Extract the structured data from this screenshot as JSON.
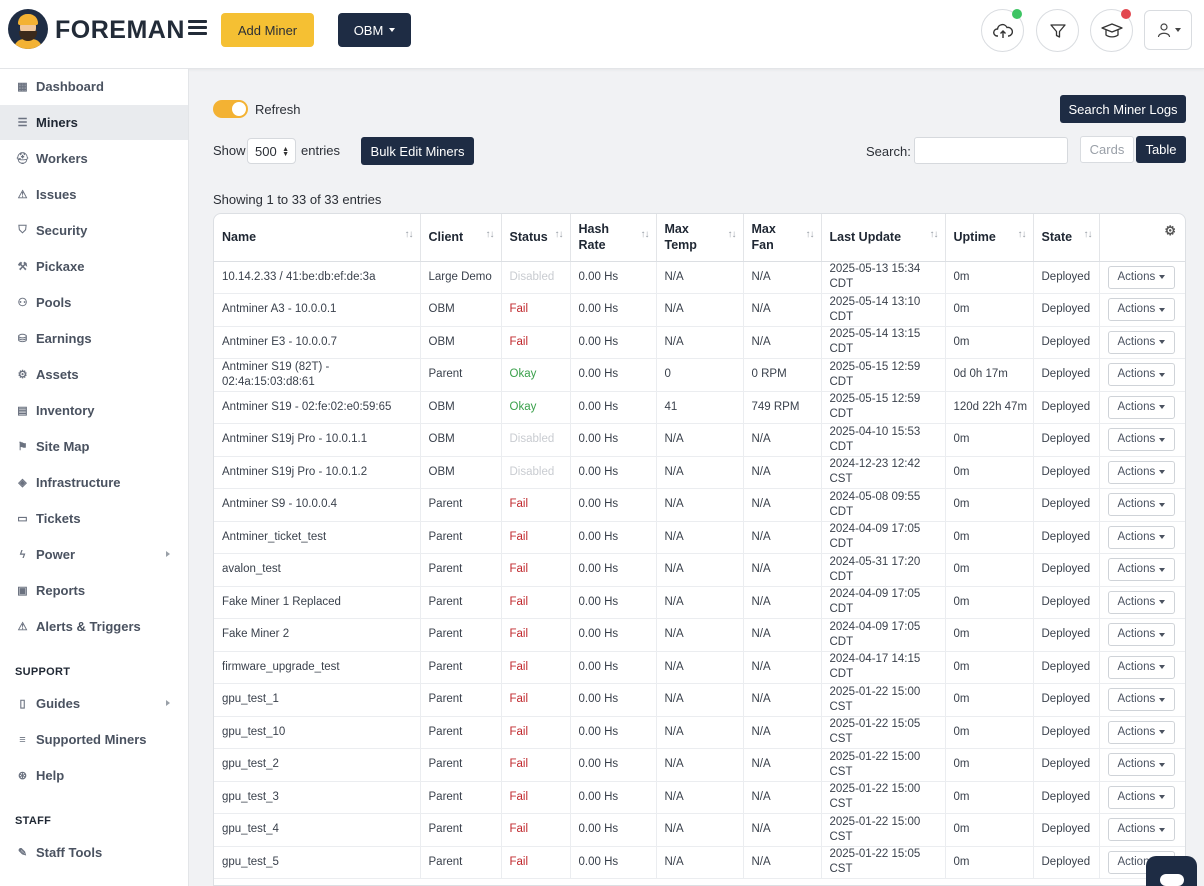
{
  "header": {
    "brand": "FOREMAN",
    "add_miner": "Add Miner",
    "org_select": "OBM",
    "status_colors": {
      "upload_dot": "#3dc463",
      "learn_dot": "#e2474f"
    }
  },
  "sidebar": {
    "items": [
      {
        "label": "Dashboard",
        "icon": "dashboard-icon"
      },
      {
        "label": "Miners",
        "icon": "server-icon"
      },
      {
        "label": "Workers",
        "icon": "hard-hat-icon"
      },
      {
        "label": "Issues",
        "icon": "warning-icon"
      },
      {
        "label": "Security",
        "icon": "shield-icon"
      },
      {
        "label": "Pickaxe",
        "icon": "pickaxe-icon"
      },
      {
        "label": "Pools",
        "icon": "pools-icon"
      },
      {
        "label": "Earnings",
        "icon": "coins-icon"
      },
      {
        "label": "Assets",
        "icon": "chip-icon"
      },
      {
        "label": "Inventory",
        "icon": "boxes-icon"
      },
      {
        "label": "Site Map",
        "icon": "sitemap-icon"
      },
      {
        "label": "Infrastructure",
        "icon": "layers-icon"
      },
      {
        "label": "Tickets",
        "icon": "ticket-icon"
      },
      {
        "label": "Power",
        "icon": "bolt-icon"
      },
      {
        "label": "Reports",
        "icon": "report-icon"
      },
      {
        "label": "Alerts & Triggers",
        "icon": "alert-icon"
      }
    ],
    "support_heading": "SUPPORT",
    "support_items": [
      {
        "label": "Guides",
        "icon": "book-icon"
      },
      {
        "label": "Supported Miners",
        "icon": "list-icon"
      },
      {
        "label": "Help",
        "icon": "lifebuoy-icon"
      }
    ],
    "staff_heading": "STAFF",
    "staff_items": [
      {
        "label": "Staff Tools",
        "icon": "wrench-icon"
      }
    ]
  },
  "main": {
    "refresh_label": "Refresh",
    "search_logs": "Search Miner Logs",
    "show_label": "Show",
    "show_value": "500",
    "entries_label": "entries",
    "bulk_edit": "Bulk Edit Miners",
    "search_label": "Search:",
    "search_value": "",
    "view_cards": "Cards",
    "view_table": "Table",
    "showing": "Showing 1 to 33 of 33 entries"
  },
  "table": {
    "columns": [
      "Name",
      "Client",
      "Status",
      "Hash Rate",
      "Max Temp",
      "Max Fan",
      "Last Update",
      "Uptime",
      "State"
    ],
    "action_label": "Actions",
    "rows": [
      {
        "name": "10.14.2.33 / 41:be:db:ef:de:3a",
        "client": "Large Demo",
        "status": "Disabled",
        "hash": "0.00 Hs",
        "temp": "N/A",
        "fan": "N/A",
        "update": "2025-05-13 15:34 CDT",
        "uptime": "0m",
        "state": "Deployed"
      },
      {
        "name": "Antminer A3 - 10.0.0.1",
        "client": "OBM",
        "status": "Fail",
        "hash": "0.00 Hs",
        "temp": "N/A",
        "fan": "N/A",
        "update": "2025-05-14 13:10 CDT",
        "uptime": "0m",
        "state": "Deployed"
      },
      {
        "name": "Antminer E3 - 10.0.0.7",
        "client": "OBM",
        "status": "Fail",
        "hash": "0.00 Hs",
        "temp": "N/A",
        "fan": "N/A",
        "update": "2025-05-14 13:15 CDT",
        "uptime": "0m",
        "state": "Deployed"
      },
      {
        "name": "Antminer S19 (82T) - 02:4a:15:03:d8:61",
        "client": "Parent",
        "status": "Okay",
        "hash": "0.00 Hs",
        "temp": "0",
        "fan": "0 RPM",
        "update": "2025-05-15 12:59 CDT",
        "uptime": "0d 0h 17m",
        "state": "Deployed"
      },
      {
        "name": "Antminer S19 - 02:fe:02:e0:59:65",
        "client": "OBM",
        "status": "Okay",
        "hash": "0.00 Hs",
        "temp": "41",
        "fan": "749 RPM",
        "update": "2025-05-15 12:59 CDT",
        "uptime": "120d 22h 47m",
        "state": "Deployed"
      },
      {
        "name": "Antminer S19j Pro - 10.0.1.1",
        "client": "OBM",
        "status": "Disabled",
        "hash": "0.00 Hs",
        "temp": "N/A",
        "fan": "N/A",
        "update": "2025-04-10 15:53 CDT",
        "uptime": "0m",
        "state": "Deployed"
      },
      {
        "name": "Antminer S19j Pro - 10.0.1.2",
        "client": "OBM",
        "status": "Disabled",
        "hash": "0.00 Hs",
        "temp": "N/A",
        "fan": "N/A",
        "update": "2024-12-23 12:42 CST",
        "uptime": "0m",
        "state": "Deployed"
      },
      {
        "name": "Antminer S9 - 10.0.0.4",
        "client": "Parent",
        "status": "Fail",
        "hash": "0.00 Hs",
        "temp": "N/A",
        "fan": "N/A",
        "update": "2024-05-08 09:55 CDT",
        "uptime": "0m",
        "state": "Deployed"
      },
      {
        "name": "Antminer_ticket_test",
        "client": "Parent",
        "status": "Fail",
        "hash": "0.00 Hs",
        "temp": "N/A",
        "fan": "N/A",
        "update": "2024-04-09 17:05 CDT",
        "uptime": "0m",
        "state": "Deployed"
      },
      {
        "name": "avalon_test",
        "client": "Parent",
        "status": "Fail",
        "hash": "0.00 Hs",
        "temp": "N/A",
        "fan": "N/A",
        "update": "2024-05-31 17:20 CDT",
        "uptime": "0m",
        "state": "Deployed"
      },
      {
        "name": "Fake Miner 1 Replaced",
        "client": "Parent",
        "status": "Fail",
        "hash": "0.00 Hs",
        "temp": "N/A",
        "fan": "N/A",
        "update": "2024-04-09 17:05 CDT",
        "uptime": "0m",
        "state": "Deployed"
      },
      {
        "name": "Fake Miner 2",
        "client": "Parent",
        "status": "Fail",
        "hash": "0.00 Hs",
        "temp": "N/A",
        "fan": "N/A",
        "update": "2024-04-09 17:05 CDT",
        "uptime": "0m",
        "state": "Deployed"
      },
      {
        "name": "firmware_upgrade_test",
        "client": "Parent",
        "status": "Fail",
        "hash": "0.00 Hs",
        "temp": "N/A",
        "fan": "N/A",
        "update": "2024-04-17 14:15 CDT",
        "uptime": "0m",
        "state": "Deployed"
      },
      {
        "name": "gpu_test_1",
        "client": "Parent",
        "status": "Fail",
        "hash": "0.00 Hs",
        "temp": "N/A",
        "fan": "N/A",
        "update": "2025-01-22 15:00 CST",
        "uptime": "0m",
        "state": "Deployed"
      },
      {
        "name": "gpu_test_10",
        "client": "Parent",
        "status": "Fail",
        "hash": "0.00 Hs",
        "temp": "N/A",
        "fan": "N/A",
        "update": "2025-01-22 15:05 CST",
        "uptime": "0m",
        "state": "Deployed"
      },
      {
        "name": "gpu_test_2",
        "client": "Parent",
        "status": "Fail",
        "hash": "0.00 Hs",
        "temp": "N/A",
        "fan": "N/A",
        "update": "2025-01-22 15:00 CST",
        "uptime": "0m",
        "state": "Deployed"
      },
      {
        "name": "gpu_test_3",
        "client": "Parent",
        "status": "Fail",
        "hash": "0.00 Hs",
        "temp": "N/A",
        "fan": "N/A",
        "update": "2025-01-22 15:00 CST",
        "uptime": "0m",
        "state": "Deployed"
      },
      {
        "name": "gpu_test_4",
        "client": "Parent",
        "status": "Fail",
        "hash": "0.00 Hs",
        "temp": "N/A",
        "fan": "N/A",
        "update": "2025-01-22 15:00 CST",
        "uptime": "0m",
        "state": "Deployed"
      },
      {
        "name": "gpu_test_5",
        "client": "Parent",
        "status": "Fail",
        "hash": "0.00 Hs",
        "temp": "N/A",
        "fan": "N/A",
        "update": "2025-01-22 15:05 CST",
        "uptime": "0m",
        "state": "Deployed"
      }
    ]
  }
}
